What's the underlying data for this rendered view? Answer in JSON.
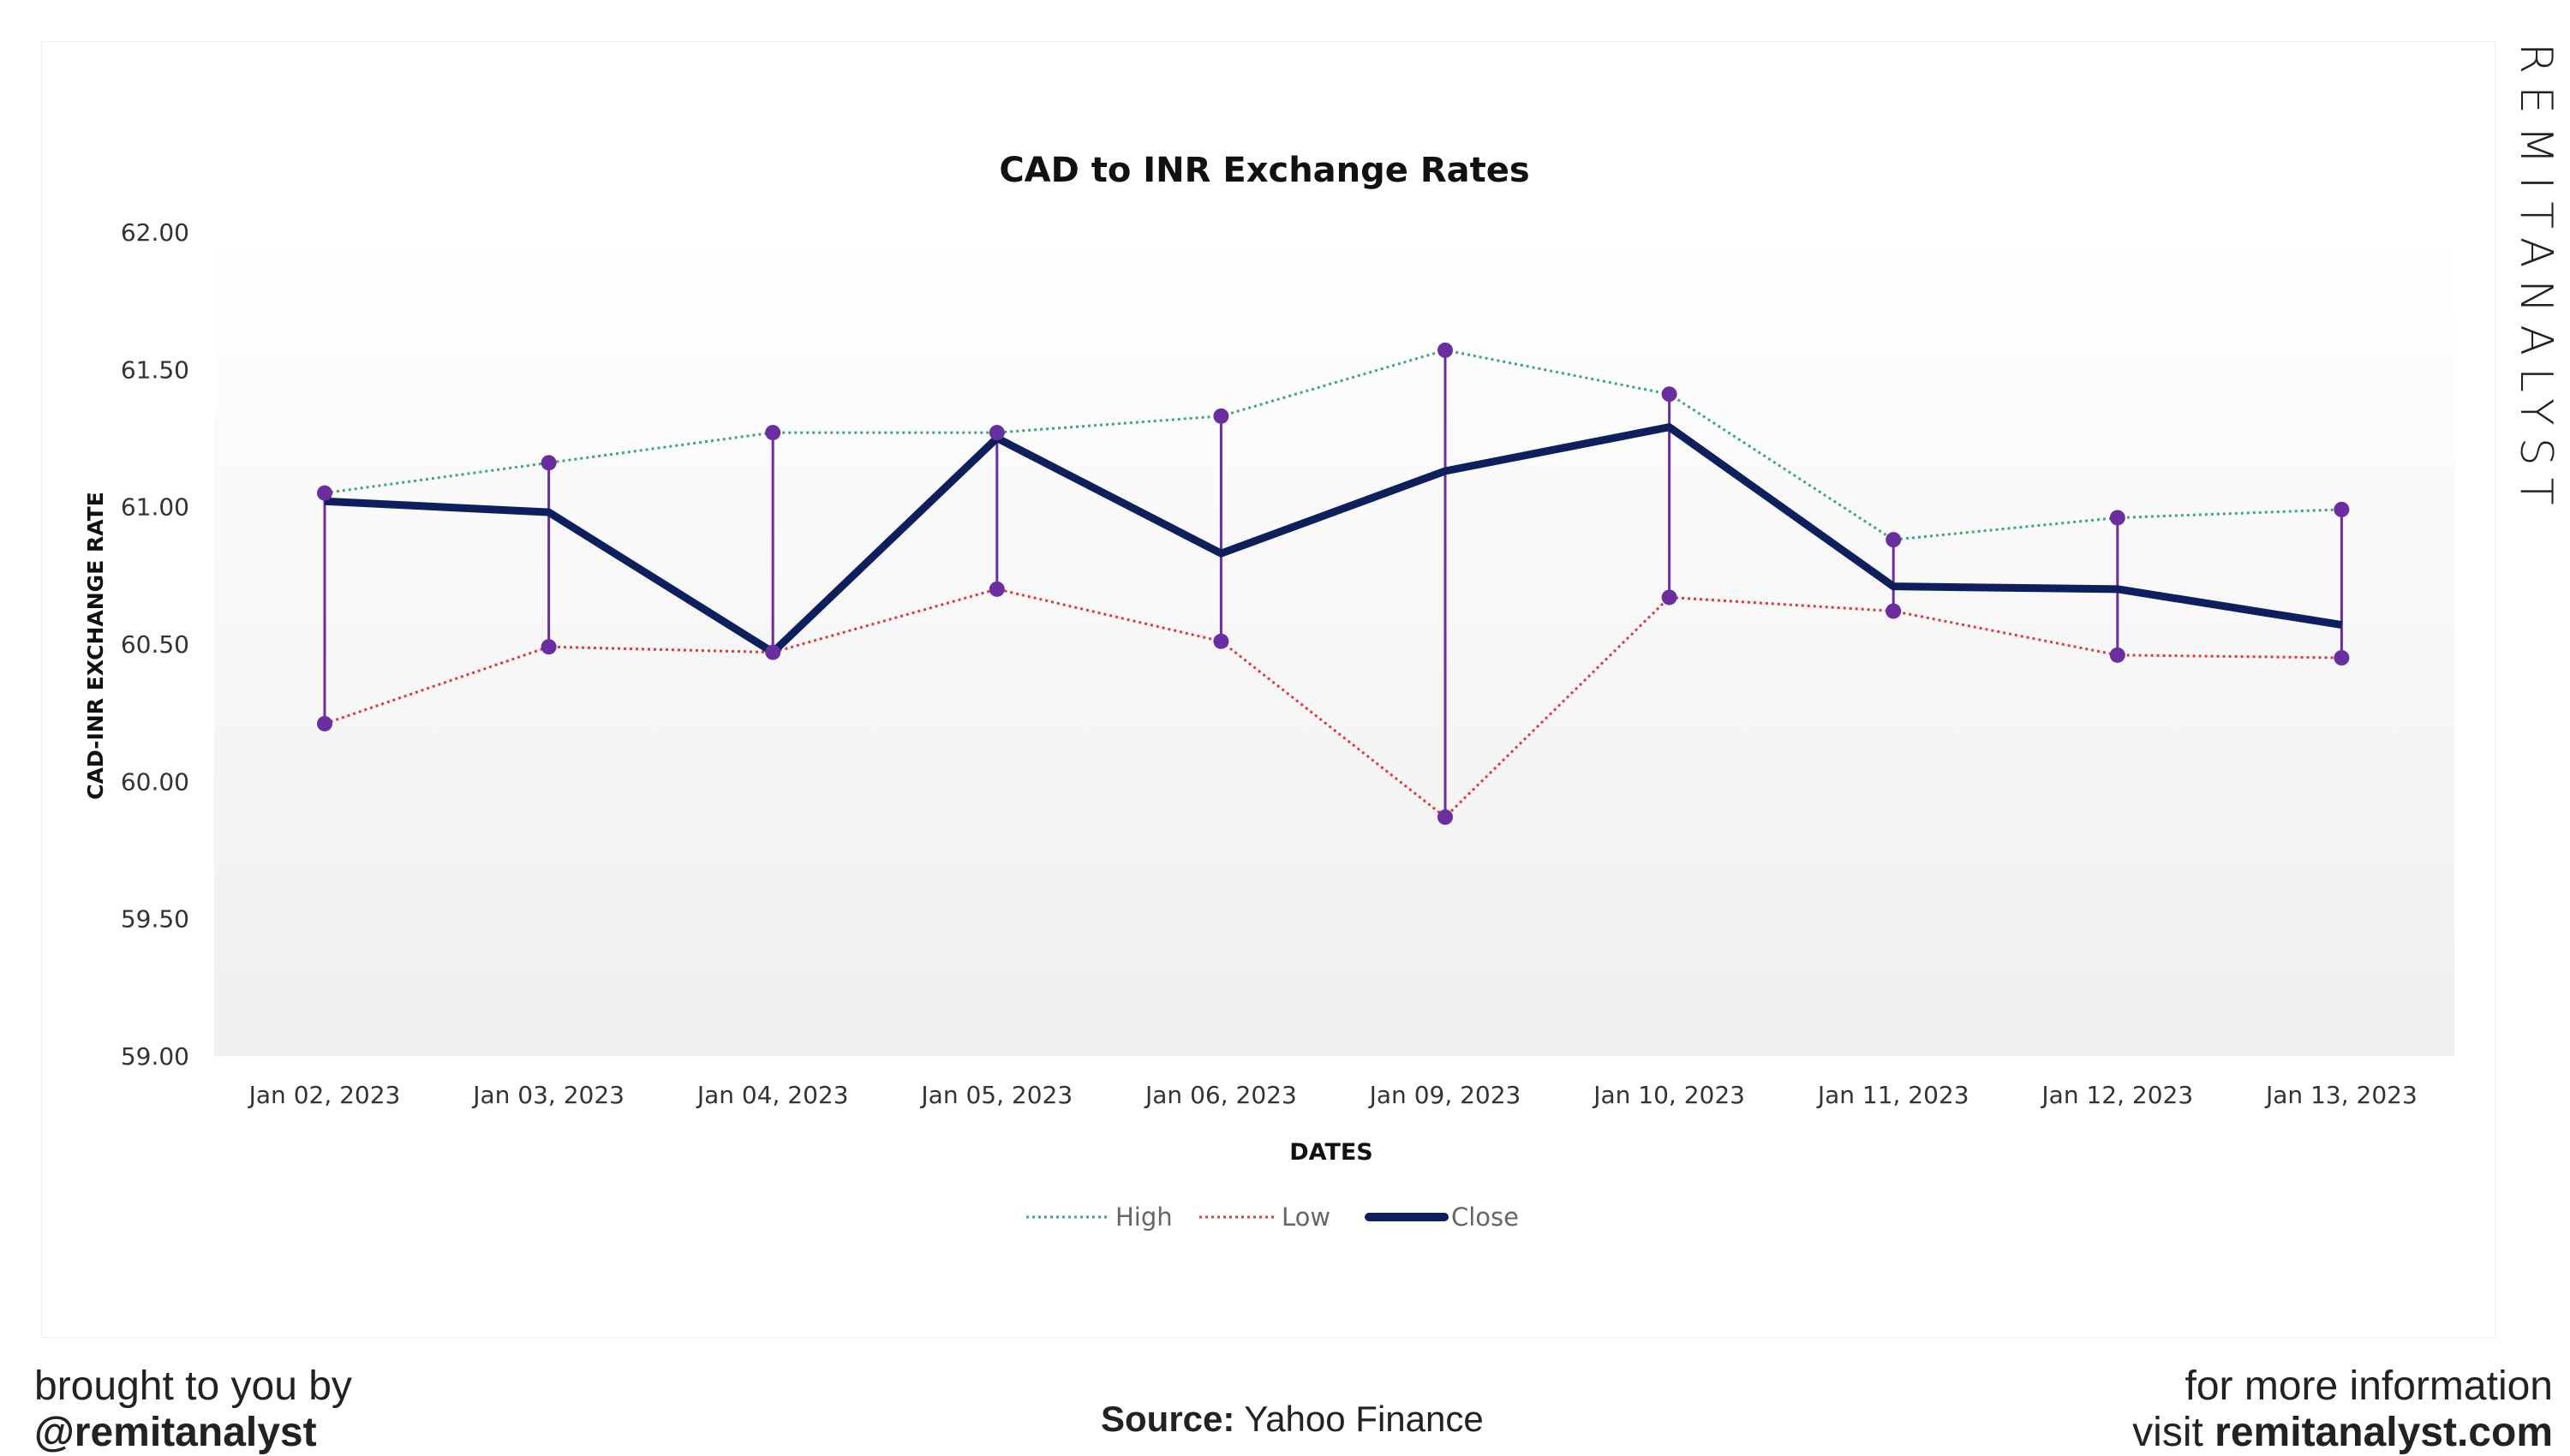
{
  "chart_data": {
    "type": "line",
    "title": "CAD to INR Exchange Rates",
    "xlabel": "DATES",
    "ylabel": "CAD-INR EXCHANGE RATE",
    "ylim": [
      59.0,
      62.0
    ],
    "yticks": [
      "59.00",
      "59.50",
      "60.00",
      "60.50",
      "61.00",
      "61.50",
      "62.00"
    ],
    "grid": false,
    "legend_position": "bottom",
    "categories": [
      "Jan 02, 2023",
      "Jan 03, 2023",
      "Jan 04, 2023",
      "Jan 05, 2023",
      "Jan 06, 2023",
      "Jan 09, 2023",
      "Jan 10, 2023",
      "Jan 11, 2023",
      "Jan 12, 2023",
      "Jan 13, 2023"
    ],
    "series": [
      {
        "name": "High",
        "color": "#3aaa6e",
        "style": "dotted",
        "values": [
          61.05,
          61.16,
          61.27,
          61.27,
          61.33,
          61.57,
          61.41,
          60.88,
          60.96,
          60.99
        ]
      },
      {
        "name": "Low",
        "color": "#e0383e",
        "style": "dotted",
        "values": [
          60.21,
          60.49,
          60.47,
          60.7,
          60.51,
          59.87,
          60.67,
          60.62,
          60.46,
          60.45
        ]
      },
      {
        "name": "Close",
        "color": "#0d1f5c",
        "style": "solid",
        "values": [
          61.02,
          60.98,
          60.47,
          61.25,
          60.83,
          61.13,
          61.29,
          60.71,
          60.7,
          60.57
        ]
      }
    ],
    "high_low_lines_color": "#6a2ea0"
  },
  "branding": {
    "vertical": "REMITANALYST",
    "brought": "brought to you by",
    "handle": "@remitanalyst",
    "source_label": "Source:",
    "source_value": "Yahoo Finance",
    "more_info": "for more information",
    "visit": "visit",
    "site": "remitanalyst.com"
  }
}
